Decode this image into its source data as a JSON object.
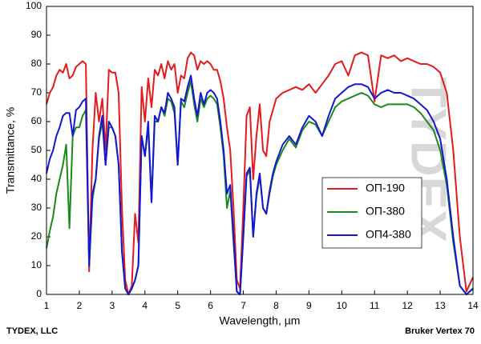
{
  "chart_data": {
    "type": "line",
    "xlabel": "Wavelength, µm",
    "ylabel": "Transmittance, %",
    "footer_left": "TYDEX, LLC",
    "footer_right": "Bruker Vertex 70",
    "watermark": "TYDEX",
    "legend": "right",
    "xlim": [
      1,
      14
    ],
    "ylim": [
      0,
      100
    ],
    "xticks": [
      1,
      2,
      3,
      4,
      5,
      6,
      7,
      8,
      9,
      10,
      11,
      12,
      13,
      14
    ],
    "yticks": [
      0,
      10,
      20,
      30,
      40,
      50,
      60,
      70,
      80,
      90,
      100
    ],
    "x": [
      1.0,
      1.1,
      1.2,
      1.3,
      1.4,
      1.5,
      1.6,
      1.7,
      1.8,
      1.9,
      2.0,
      2.1,
      2.2,
      2.3,
      2.4,
      2.5,
      2.6,
      2.7,
      2.8,
      2.9,
      3.0,
      3.1,
      3.2,
      3.3,
      3.4,
      3.5,
      3.6,
      3.7,
      3.8,
      3.9,
      4.0,
      4.1,
      4.2,
      4.3,
      4.4,
      4.5,
      4.6,
      4.7,
      4.8,
      4.9,
      5.0,
      5.1,
      5.2,
      5.3,
      5.4,
      5.5,
      5.6,
      5.7,
      5.8,
      5.9,
      6.0,
      6.1,
      6.2,
      6.3,
      6.4,
      6.5,
      6.6,
      6.7,
      6.8,
      6.9,
      7.0,
      7.1,
      7.2,
      7.3,
      7.4,
      7.5,
      7.6,
      7.7,
      7.8,
      7.9,
      8.0,
      8.2,
      8.4,
      8.6,
      8.8,
      9.0,
      9.2,
      9.4,
      9.6,
      9.8,
      10.0,
      10.2,
      10.4,
      10.6,
      10.8,
      11.0,
      11.2,
      11.4,
      11.6,
      11.8,
      12.0,
      12.2,
      12.4,
      12.6,
      12.8,
      13.0,
      13.2,
      13.4,
      13.6,
      13.8,
      14.0
    ],
    "series": [
      {
        "name": "ОП-190",
        "color": "#e41a1c",
        "values": [
          66,
          70,
          72,
          76,
          78,
          77,
          80,
          75,
          76,
          79,
          80,
          81,
          80,
          8,
          50,
          70,
          60,
          68,
          50,
          78,
          77,
          77,
          70,
          30,
          5,
          0,
          3,
          28,
          18,
          72,
          60,
          75,
          65,
          78,
          76,
          80,
          75,
          81,
          78,
          80,
          70,
          76,
          75,
          82,
          84,
          83,
          78,
          81,
          80,
          81,
          80,
          78,
          78,
          74,
          68,
          58,
          50,
          30,
          5,
          2,
          30,
          62,
          65,
          40,
          55,
          66,
          50,
          48,
          60,
          64,
          68,
          70,
          71,
          72,
          71,
          73,
          70,
          73,
          76,
          80,
          81,
          76,
          83,
          84,
          83,
          67,
          83,
          82,
          83,
          81,
          82,
          81,
          80,
          80,
          79,
          77,
          70,
          50,
          20,
          1,
          6
        ]
      },
      {
        "name": "ОП-380",
        "color": "#1a8a1a",
        "values": [
          16,
          22,
          27,
          35,
          40,
          45,
          52,
          23,
          55,
          58,
          58,
          62,
          64,
          10,
          33,
          40,
          54,
          60,
          45,
          58,
          58,
          55,
          45,
          15,
          2,
          0,
          2,
          5,
          10,
          55,
          48,
          58,
          32,
          60,
          60,
          65,
          62,
          68,
          67,
          63,
          45,
          67,
          65,
          70,
          74,
          66,
          60,
          68,
          65,
          68,
          69,
          68,
          66,
          58,
          48,
          30,
          36,
          18,
          1,
          0,
          20,
          41,
          43,
          20,
          34,
          41,
          30,
          28,
          35,
          41,
          45,
          50,
          54,
          51,
          57,
          60,
          59,
          55,
          60,
          65,
          67,
          68,
          69,
          70,
          69,
          66,
          65,
          66,
          66,
          66,
          66,
          65,
          63,
          60,
          57,
          50,
          38,
          18,
          3,
          0,
          2
        ]
      },
      {
        "name": "ОП4-380",
        "color": "#1515d6",
        "values": [
          42,
          47,
          50,
          55,
          58,
          62,
          63,
          63,
          55,
          64,
          65,
          67,
          68,
          10,
          35,
          40,
          55,
          62,
          45,
          60,
          58,
          55,
          45,
          15,
          2,
          0,
          2,
          5,
          10,
          55,
          48,
          60,
          32,
          62,
          60,
          65,
          63,
          70,
          68,
          65,
          45,
          68,
          67,
          72,
          76,
          68,
          62,
          70,
          66,
          70,
          71,
          70,
          68,
          60,
          50,
          35,
          38,
          20,
          1,
          0,
          20,
          42,
          44,
          20,
          35,
          42,
          30,
          28,
          36,
          42,
          46,
          52,
          55,
          52,
          58,
          62,
          60,
          55,
          62,
          68,
          70,
          72,
          73,
          73,
          72,
          68,
          70,
          71,
          70,
          70,
          69,
          68,
          66,
          64,
          60,
          54,
          40,
          20,
          3,
          0,
          2
        ]
      }
    ]
  }
}
